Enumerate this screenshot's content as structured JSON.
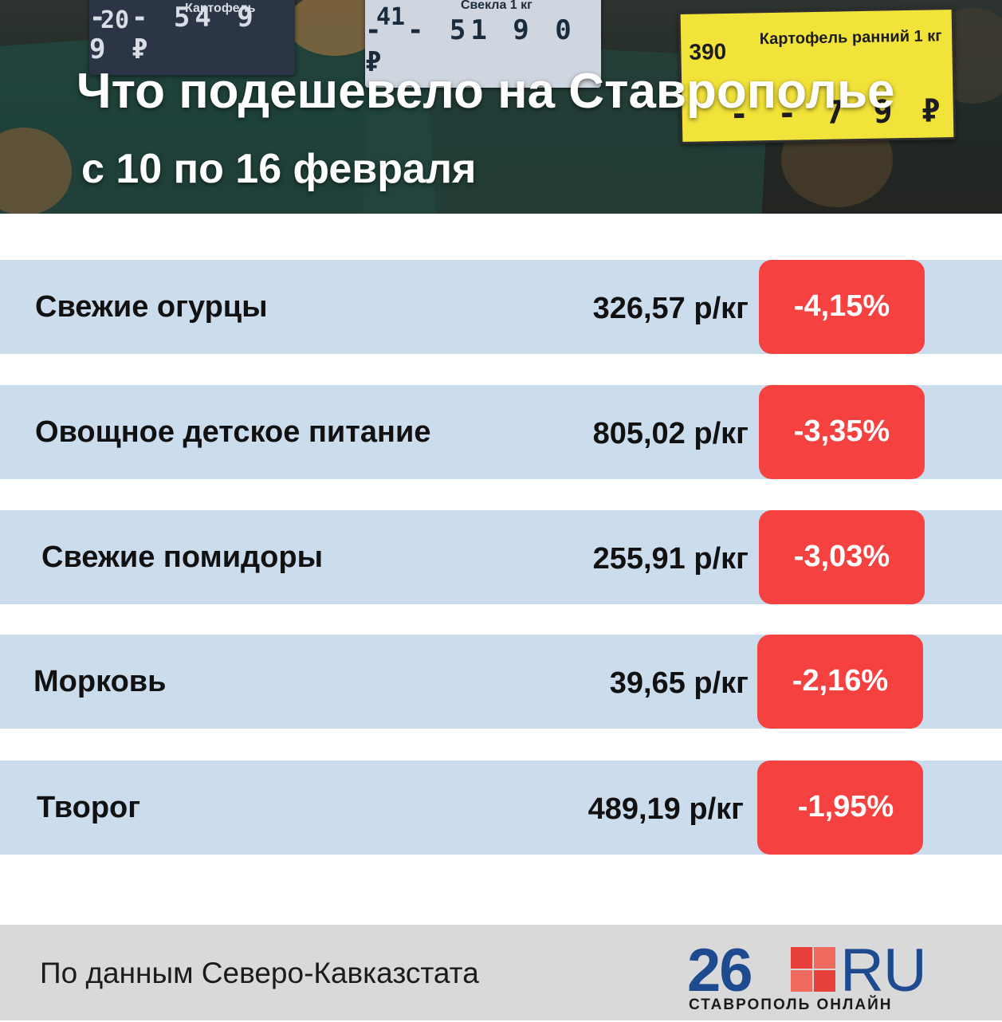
{
  "header": {
    "title": "Что подешевело на Ставрополье",
    "subtitle": "с 10 по 16 февраля",
    "photo_tags": [
      {
        "number": "20",
        "label": "Картофель",
        "price": "- - 54 9 9 ₽"
      },
      {
        "number": "41",
        "label": "Свекла 1 кг",
        "price": "- - 51 9 0 ₽"
      },
      {
        "number": "390",
        "label": "Картофель ранний 1 кг",
        "price": "- - 7 9 ₽"
      }
    ]
  },
  "items": [
    {
      "name": "Свежие огурцы",
      "price": "326,57 р/кг",
      "change": "-4,15%"
    },
    {
      "name": "Овощное детское питание",
      "price": "805,02 р/кг",
      "change": "-3,35%"
    },
    {
      "name": " Свежие помидоры",
      "price": "255,91 р/кг",
      "change": "-3,03%"
    },
    {
      "name": "Морковь",
      "price": "39,65 р/кг",
      "change": "-2,16%"
    },
    {
      "name": "Творог",
      "price": "489,19 р/кг",
      "change": "-1,95%"
    }
  ],
  "footer": {
    "source": "По данным Северо-Кавказстата",
    "logo": {
      "number": "26",
      "suffix": "RU",
      "tagline": "СТАВРОПОЛЬ ОНЛАЙН"
    }
  },
  "colors": {
    "row_background": "#cbdced",
    "badge_red": "#f5413f",
    "logo_blue": "#1e4b8f",
    "footer_gray": "#d9d9d9"
  }
}
